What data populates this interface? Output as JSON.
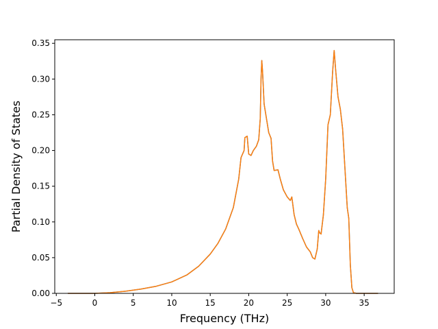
{
  "chart_data": {
    "type": "line",
    "title": "",
    "xlabel": "Frequency (THz)",
    "ylabel": "Partial Density of States",
    "xlim": [
      -5.2,
      38.9
    ],
    "ylim": [
      0,
      0.355
    ],
    "x_ticks": [
      -5,
      0,
      5,
      10,
      15,
      20,
      25,
      30,
      35
    ],
    "x_tick_labels": [
      "−5",
      "0",
      "5",
      "10",
      "15",
      "20",
      "25",
      "30",
      "35"
    ],
    "y_ticks": [
      0.0,
      0.05,
      0.1,
      0.15,
      0.2,
      0.25,
      0.3,
      0.35
    ],
    "y_tick_labels": [
      "0.00",
      "0.05",
      "0.10",
      "0.15",
      "0.20",
      "0.25",
      "0.30",
      "0.35"
    ],
    "grid": false,
    "legend": "none",
    "series": [
      {
        "color": "#1f77b4",
        "points": [
          [
            -3.5,
            0.0
          ],
          [
            0.0,
            0.0
          ],
          [
            2.0,
            0.001
          ],
          [
            4.0,
            0.003
          ],
          [
            6.0,
            0.006
          ],
          [
            8.0,
            0.01
          ],
          [
            10.0,
            0.016
          ],
          [
            12.0,
            0.026
          ],
          [
            13.5,
            0.038
          ],
          [
            15.0,
            0.055
          ],
          [
            16.0,
            0.07
          ],
          [
            17.0,
            0.09
          ],
          [
            18.0,
            0.12
          ],
          [
            18.7,
            0.16
          ],
          [
            19.0,
            0.19
          ],
          [
            19.4,
            0.2
          ],
          [
            19.5,
            0.218
          ],
          [
            19.8,
            0.22
          ],
          [
            20.0,
            0.195
          ],
          [
            20.3,
            0.193
          ],
          [
            20.6,
            0.2
          ],
          [
            21.0,
            0.206
          ],
          [
            21.3,
            0.215
          ],
          [
            21.5,
            0.245
          ],
          [
            21.6,
            0.3
          ],
          [
            21.7,
            0.326
          ],
          [
            21.8,
            0.31
          ],
          [
            22.0,
            0.265
          ],
          [
            22.3,
            0.245
          ],
          [
            22.6,
            0.225
          ],
          [
            22.9,
            0.217
          ],
          [
            23.1,
            0.185
          ],
          [
            23.3,
            0.172
          ],
          [
            23.8,
            0.173
          ],
          [
            24.1,
            0.16
          ],
          [
            24.5,
            0.145
          ],
          [
            25.0,
            0.135
          ],
          [
            25.4,
            0.13
          ],
          [
            25.6,
            0.135
          ],
          [
            25.9,
            0.11
          ],
          [
            26.2,
            0.097
          ],
          [
            26.5,
            0.09
          ],
          [
            27.0,
            0.077
          ],
          [
            27.5,
            0.065
          ],
          [
            28.0,
            0.058
          ],
          [
            28.3,
            0.05
          ],
          [
            28.6,
            0.048
          ],
          [
            28.9,
            0.062
          ],
          [
            29.1,
            0.088
          ],
          [
            29.2,
            0.085
          ],
          [
            29.4,
            0.083
          ],
          [
            29.7,
            0.11
          ],
          [
            30.0,
            0.16
          ],
          [
            30.3,
            0.236
          ],
          [
            30.6,
            0.25
          ],
          [
            30.9,
            0.31
          ],
          [
            31.1,
            0.34
          ],
          [
            31.3,
            0.312
          ],
          [
            31.6,
            0.275
          ],
          [
            31.9,
            0.258
          ],
          [
            32.2,
            0.23
          ],
          [
            32.5,
            0.175
          ],
          [
            32.8,
            0.12
          ],
          [
            33.0,
            0.105
          ],
          [
            33.2,
            0.04
          ],
          [
            33.4,
            0.008
          ],
          [
            33.6,
            0.001
          ],
          [
            34.0,
            0.0
          ],
          [
            36.8,
            0.0
          ]
        ]
      },
      {
        "color": "#ff7f0e",
        "points": [
          [
            -3.5,
            0.0
          ],
          [
            0.0,
            0.0
          ],
          [
            2.0,
            0.001
          ],
          [
            4.0,
            0.003
          ],
          [
            6.0,
            0.006
          ],
          [
            8.0,
            0.01
          ],
          [
            10.0,
            0.016
          ],
          [
            12.0,
            0.026
          ],
          [
            13.5,
            0.038
          ],
          [
            15.0,
            0.055
          ],
          [
            16.0,
            0.07
          ],
          [
            17.0,
            0.09
          ],
          [
            18.0,
            0.12
          ],
          [
            18.7,
            0.16
          ],
          [
            19.0,
            0.19
          ],
          [
            19.4,
            0.2
          ],
          [
            19.5,
            0.218
          ],
          [
            19.8,
            0.22
          ],
          [
            20.0,
            0.195
          ],
          [
            20.3,
            0.193
          ],
          [
            20.6,
            0.2
          ],
          [
            21.0,
            0.206
          ],
          [
            21.3,
            0.215
          ],
          [
            21.5,
            0.245
          ],
          [
            21.6,
            0.3
          ],
          [
            21.7,
            0.326
          ],
          [
            21.8,
            0.31
          ],
          [
            22.0,
            0.265
          ],
          [
            22.3,
            0.245
          ],
          [
            22.6,
            0.225
          ],
          [
            22.9,
            0.217
          ],
          [
            23.1,
            0.185
          ],
          [
            23.3,
            0.172
          ],
          [
            23.8,
            0.173
          ],
          [
            24.1,
            0.16
          ],
          [
            24.5,
            0.145
          ],
          [
            25.0,
            0.135
          ],
          [
            25.4,
            0.13
          ],
          [
            25.6,
            0.135
          ],
          [
            25.9,
            0.11
          ],
          [
            26.2,
            0.097
          ],
          [
            26.5,
            0.09
          ],
          [
            27.0,
            0.077
          ],
          [
            27.5,
            0.065
          ],
          [
            28.0,
            0.058
          ],
          [
            28.3,
            0.05
          ],
          [
            28.6,
            0.048
          ],
          [
            28.9,
            0.062
          ],
          [
            29.1,
            0.088
          ],
          [
            29.2,
            0.085
          ],
          [
            29.4,
            0.083
          ],
          [
            29.7,
            0.11
          ],
          [
            30.0,
            0.16
          ],
          [
            30.3,
            0.236
          ],
          [
            30.6,
            0.25
          ],
          [
            30.9,
            0.31
          ],
          [
            31.1,
            0.34
          ],
          [
            31.3,
            0.312
          ],
          [
            31.6,
            0.275
          ],
          [
            31.9,
            0.258
          ],
          [
            32.2,
            0.23
          ],
          [
            32.5,
            0.175
          ],
          [
            32.8,
            0.12
          ],
          [
            33.0,
            0.105
          ],
          [
            33.2,
            0.04
          ],
          [
            33.4,
            0.008
          ],
          [
            33.6,
            0.001
          ],
          [
            34.0,
            0.0
          ],
          [
            36.8,
            0.0
          ]
        ]
      }
    ]
  }
}
